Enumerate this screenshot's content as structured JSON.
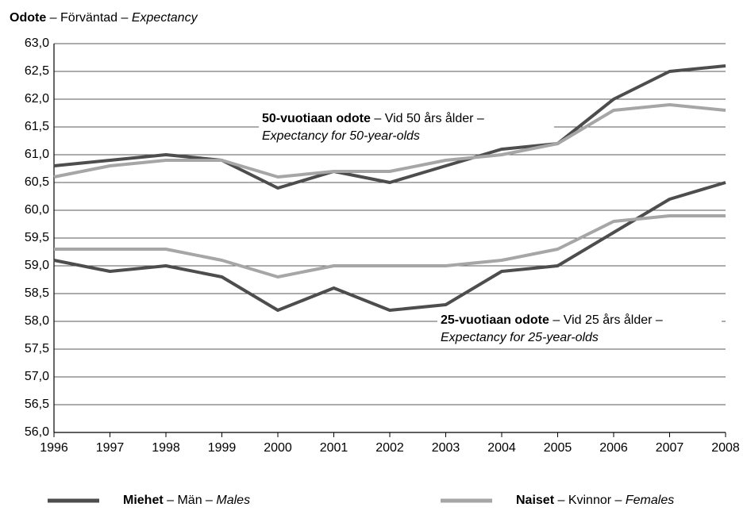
{
  "chart_data": {
    "type": "line",
    "title": "Odote – Förväntad – Expectancy",
    "annotations": [
      {
        "lines": [
          "50-vuotiaan odote – Vid 50 års ålder –",
          "Expectancy for 50-year-olds"
        ]
      },
      {
        "lines": [
          "25-vuotiaan odote – Vid 25 års ålder –",
          "Expectancy for 25-year-olds"
        ]
      }
    ],
    "x": [
      1996,
      1997,
      1998,
      1999,
      2000,
      2001,
      2002,
      2003,
      2004,
      2005,
      2006,
      2007,
      2008
    ],
    "xlim": [
      1996,
      2008
    ],
    "xticks": [
      1996,
      1997,
      1998,
      1999,
      2000,
      2001,
      2002,
      2003,
      2004,
      2005,
      2006,
      2007,
      2008
    ],
    "ylim": [
      56,
      63
    ],
    "yticks": [
      {
        "value": 56,
        "label": "56,0"
      },
      {
        "value": 56.5,
        "label": "56,5"
      },
      {
        "value": 57,
        "label": "57,0"
      },
      {
        "value": 57.5,
        "label": "57,5"
      },
      {
        "value": 58,
        "label": "58,0"
      },
      {
        "value": 58.5,
        "label": "58,5"
      },
      {
        "value": 59,
        "label": "59,0"
      },
      {
        "value": 59.5,
        "label": "59,5"
      },
      {
        "value": 60,
        "label": "60,0"
      },
      {
        "value": 60.5,
        "label": "60,5"
      },
      {
        "value": 61,
        "label": "61,0"
      },
      {
        "value": 61.5,
        "label": "61,5"
      },
      {
        "value": 62,
        "label": "62,0"
      },
      {
        "value": 62.5,
        "label": "62,5"
      },
      {
        "value": 63,
        "label": "63,0"
      }
    ],
    "grid": true,
    "legend": "bottom",
    "series": [
      {
        "name": "Miehet – Män – Males",
        "color": "#4d4d4d",
        "values": [
          60.8,
          60.9,
          61.0,
          60.9,
          60.4,
          60.7,
          60.5,
          60.8,
          61.1,
          61.2,
          62.0,
          62.5,
          62.6
        ]
      },
      {
        "name": "Naiset – Kvinnor – Females",
        "color": "#a6a6a6",
        "values": [
          60.6,
          60.8,
          60.9,
          60.9,
          60.6,
          60.7,
          60.7,
          60.9,
          61.0,
          61.2,
          61.8,
          61.9,
          61.8
        ]
      },
      {
        "name": "Miehet – Män – Males",
        "color": "#4d4d4d",
        "values": [
          59.1,
          58.9,
          59.0,
          58.8,
          58.2,
          58.6,
          58.2,
          58.3,
          58.9,
          59.0,
          59.6,
          60.2,
          60.5
        ]
      },
      {
        "name": "Naiset – Kvinnor – Females",
        "color": "#a6a6a6",
        "values": [
          59.3,
          59.3,
          59.3,
          59.1,
          58.8,
          59.0,
          59.0,
          59.0,
          59.1,
          59.3,
          59.8,
          59.9,
          59.9
        ]
      }
    ]
  }
}
